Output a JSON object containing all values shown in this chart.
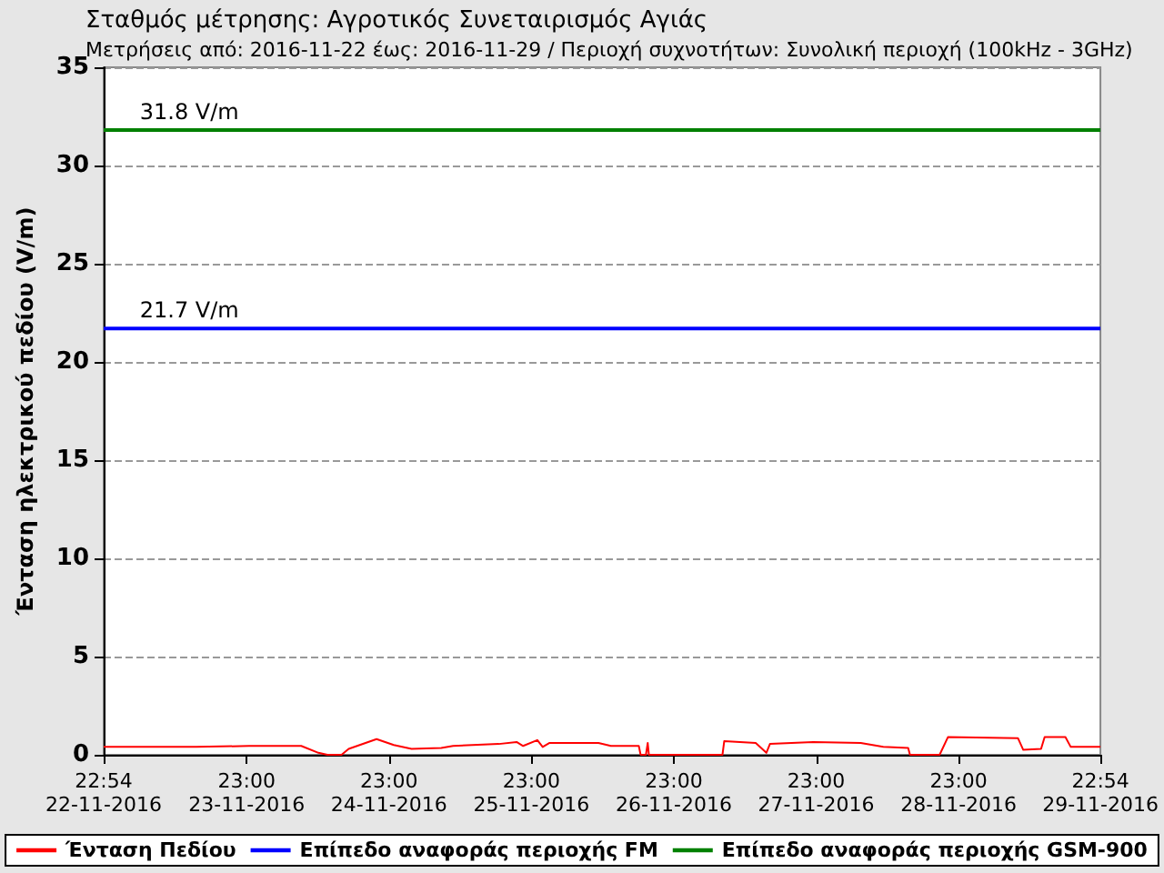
{
  "chart_data": {
    "type": "line",
    "title": "Σταθμός μέτρησης: Αγροτικός Συνεταιρισμός Αγιάς",
    "subtitle": "Μετρήσεις από: 2016-11-22 έως: 2016-11-29 / Περιοχή συχνοτήτων: Συνολική περιοχή (100kHz - 3GHz)",
    "ylabel": "Ένταση ηλεκτρικού πεδίου (V/m)",
    "xlim": [
      "2016-11-22T22:54",
      "2016-11-29T22:54"
    ],
    "xticks": [
      {
        "value": "2016-11-22T22:54",
        "label": "22:54\n22-11-2016"
      },
      {
        "value": "2016-11-23T23:00",
        "label": "23:00\n23-11-2016"
      },
      {
        "value": "2016-11-24T23:00",
        "label": "23:00\n24-11-2016"
      },
      {
        "value": "2016-11-25T23:00",
        "label": "23:00\n25-11-2016"
      },
      {
        "value": "2016-11-26T23:00",
        "label": "23:00\n26-11-2016"
      },
      {
        "value": "2016-11-27T23:00",
        "label": "23:00\n27-11-2016"
      },
      {
        "value": "2016-11-28T23:00",
        "label": "23:00\n28-11-2016"
      },
      {
        "value": "2016-11-29T22:54",
        "label": "22:54\n29-11-2016"
      }
    ],
    "ylim": [
      0,
      35
    ],
    "yticks": [
      0,
      5,
      10,
      15,
      20,
      25,
      30,
      35
    ],
    "grid": "y",
    "legend": "bottom",
    "marker": "none",
    "line_style": "solid",
    "series": [
      {
        "name": "Ένταση Πεδίου",
        "color": "#ff0000",
        "x": [
          "2016-11-22T22:54",
          "2016-11-23T14:30",
          "2016-11-23T23:24",
          "2016-11-24T08:12",
          "2016-11-24T11:06",
          "2016-11-24T12:36",
          "2016-11-24T15:00",
          "2016-11-24T16:12",
          "2016-11-24T20:54",
          "2016-11-24T23:48",
          "2016-11-25T02:48",
          "2016-11-25T07:48",
          "2016-11-25T09:48",
          "2016-11-25T17:30",
          "2016-11-25T20:30",
          "2016-11-25T21:36",
          "2016-11-26T00:00",
          "2016-11-26T00:54",
          "2016-11-26T02:00",
          "2016-11-26T10:18",
          "2016-11-26T12:24",
          "2016-11-26T17:06",
          "2016-11-26T17:24",
          "2016-11-26T18:18",
          "2016-11-26T18:36",
          "2016-11-26T18:48",
          "2016-11-27T07:12",
          "2016-11-27T07:30",
          "2016-11-27T12:48",
          "2016-11-27T14:36",
          "2016-11-27T15:12",
          "2016-11-27T22:30",
          "2016-11-28T06:30",
          "2016-11-28T10:18",
          "2016-11-28T14:30",
          "2016-11-28T14:48",
          "2016-11-28T19:48",
          "2016-11-28T21:12",
          "2016-11-29T09:00",
          "2016-11-29T09:54",
          "2016-11-29T12:54",
          "2016-11-29T13:30",
          "2016-11-29T17:00",
          "2016-11-29T17:54",
          "2016-11-29T22:54"
        ],
        "values": [
          0.4,
          0.4,
          0.45,
          0.45,
          0.1,
          0,
          0,
          0.3,
          0.8,
          0.5,
          0.3,
          0.35,
          0.45,
          0.55,
          0.65,
          0.45,
          0.75,
          0.4,
          0.6,
          0.6,
          0.45,
          0.45,
          0,
          0,
          0.6,
          0,
          0,
          0.7,
          0.6,
          0.1,
          0.55,
          0.65,
          0.6,
          0.4,
          0.35,
          0,
          0,
          0.9,
          0.85,
          0.25,
          0.3,
          0.9,
          0.9,
          0.4,
          0.4
        ]
      },
      {
        "name": "Επίπεδο αναφοράς περιοχής FM",
        "color": "#0000ff",
        "x": [
          "2016-11-22T22:54",
          "2016-11-29T22:54"
        ],
        "values": [
          21.7,
          21.7
        ]
      },
      {
        "name": "Επίπεδο αναφοράς περιοχής GSM-900",
        "color": "#008000",
        "x": [
          "2016-11-22T22:54",
          "2016-11-29T22:54"
        ],
        "values": [
          31.8,
          31.8
        ]
      }
    ],
    "annotations": [
      {
        "text": "31.8 V/m",
        "x": "2016-11-23T05:00",
        "y": 31.8
      },
      {
        "text": "21.7 V/m",
        "x": "2016-11-23T05:00",
        "y": 21.7
      }
    ]
  }
}
